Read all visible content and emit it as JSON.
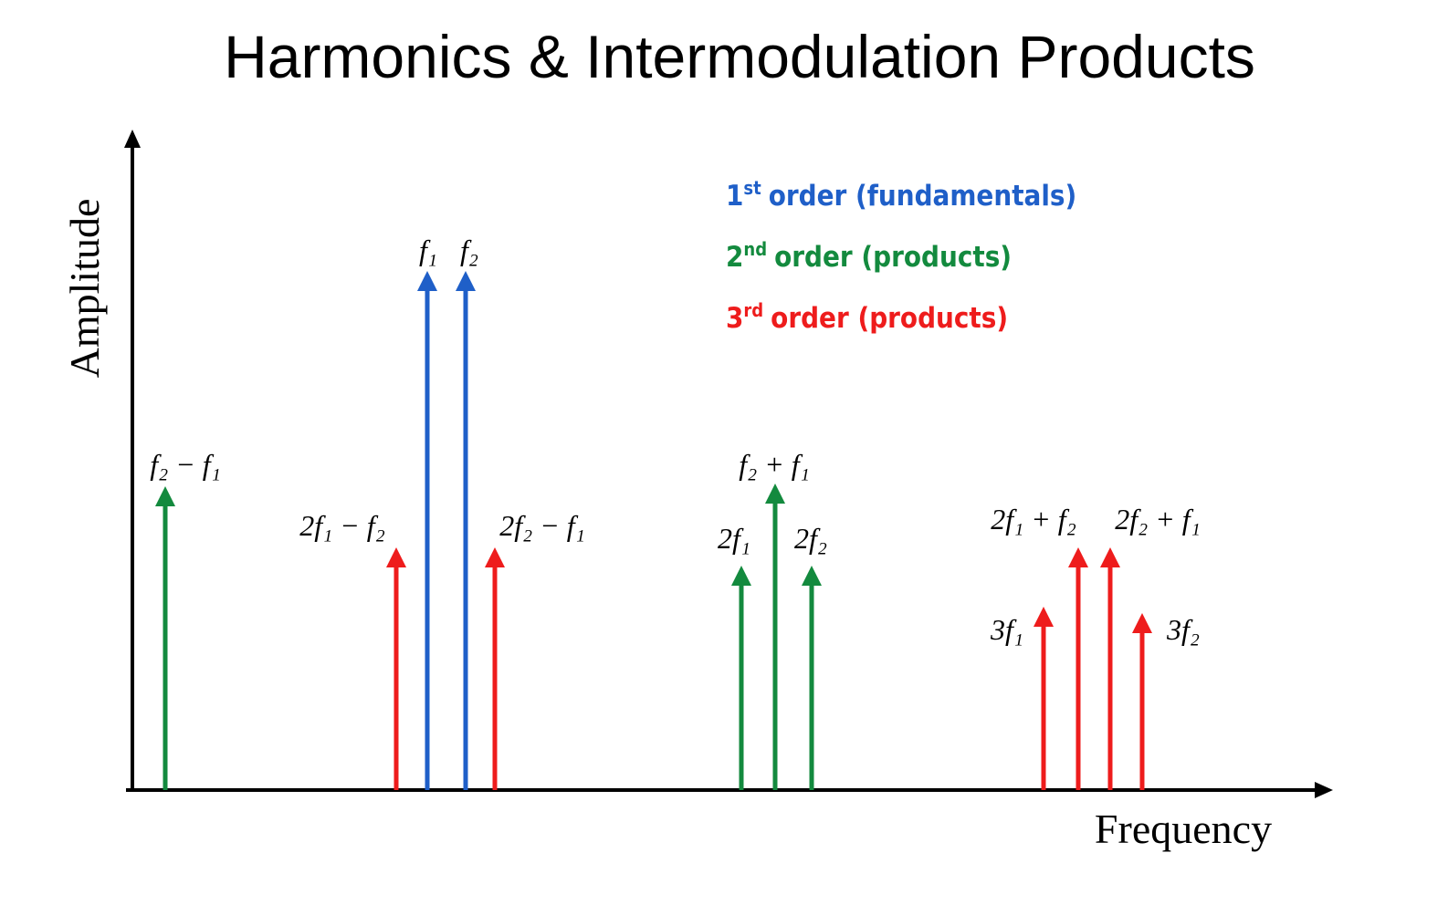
{
  "title": "Harmonics & Intermodulation Products",
  "axes": {
    "x_label": "Frequency",
    "y_label": "Amplitude"
  },
  "legend": [
    {
      "number": "1",
      "suffix": "st",
      "text": "order (fundamentals)",
      "color": "#1f5fc8"
    },
    {
      "number": "2",
      "suffix": "nd",
      "text": "order (products)",
      "color": "#138a3e"
    },
    {
      "number": "3",
      "suffix": "rd",
      "text": "order (products)",
      "color": "#ee1c1c"
    }
  ],
  "arrows": [
    {
      "label": "f₂ − f₁",
      "color": "#138a3e"
    },
    {
      "label": "2f₁ − f₂",
      "color": "#ee1c1c"
    },
    {
      "label": "f₁",
      "color": "#1f5fc8"
    },
    {
      "label": "f₂",
      "color": "#1f5fc8"
    },
    {
      "label": "2f₂ − f₁",
      "color": "#ee1c1c"
    },
    {
      "label": "2f₁",
      "color": "#138a3e"
    },
    {
      "label": "f₂ + f₁",
      "color": "#138a3e"
    },
    {
      "label": "2f₂",
      "color": "#138a3e"
    },
    {
      "label": "3f₁",
      "color": "#ee1c1c"
    },
    {
      "label": "2f₁ + f₂",
      "color": "#ee1c1c"
    },
    {
      "label": "2f₂ + f₁",
      "color": "#ee1c1c"
    },
    {
      "label": "3f₂",
      "color": "#ee1c1c"
    }
  ]
}
